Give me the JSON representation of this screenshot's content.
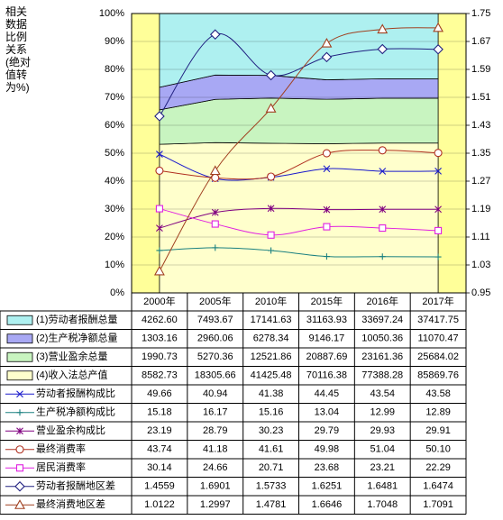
{
  "chart_data": {
    "type": "combo",
    "y_title": "相关数据比例关系(绝对值转为%)",
    "categories": [
      "2000年",
      "2005年",
      "2010年",
      "2015年",
      "2016年",
      "2017年"
    ],
    "ylim": [
      0,
      100
    ],
    "yticks": [
      {
        "value": 0,
        "label": "0%"
      },
      {
        "value": 10,
        "label": "10%"
      },
      {
        "value": 20,
        "label": "20%"
      },
      {
        "value": 30,
        "label": "30%"
      },
      {
        "value": 40,
        "label": "40%"
      },
      {
        "value": 50,
        "label": "50%"
      },
      {
        "value": 60,
        "label": "60%"
      },
      {
        "value": 70,
        "label": "70%"
      },
      {
        "value": 80,
        "label": "80%"
      },
      {
        "value": 90,
        "label": "90%"
      },
      {
        "value": 100,
        "label": "100%"
      }
    ],
    "y2lim": [
      0.95,
      1.75
    ],
    "y2ticks": [
      0.95,
      1.03,
      1.11,
      1.19,
      1.27,
      1.35,
      1.43,
      1.51,
      1.59,
      1.67,
      1.75
    ],
    "area_stacking": "percent",
    "grid": true,
    "background": "#ffff99",
    "data_table": true,
    "series": [
      {
        "name": "(1)劳动者报酬总量",
        "type": "area",
        "color": "#aef0f0",
        "values": [
          4262.6,
          7493.67,
          17141.63,
          31163.93,
          33697.24,
          37417.75
        ],
        "value_labels": [
          "4262.60",
          "7493.67",
          "17141.63",
          "31163.93",
          "33697.24",
          "37417.75"
        ]
      },
      {
        "name": "(2)生产税净额总量",
        "type": "area",
        "color": "#a8a8f4",
        "values": [
          1303.16,
          2960.06,
          6278.34,
          9146.17,
          10050.36,
          11070.47
        ],
        "value_labels": [
          "1303.16",
          "2960.06",
          "6278.34",
          "9146.17",
          "10050.36",
          "11070.47"
        ]
      },
      {
        "name": "(3)营业盈余总量",
        "type": "area",
        "color": "#c8f4c0",
        "values": [
          1990.73,
          5270.36,
          12521.86,
          20887.69,
          23161.36,
          25684.02
        ],
        "value_labels": [
          "1990.73",
          "5270.36",
          "12521.86",
          "20887.69",
          "23161.36",
          "25684.02"
        ]
      },
      {
        "name": "(4)收入法总产值",
        "type": "area",
        "color": "#ffffcc",
        "values": [
          8582.73,
          18305.66,
          41425.48,
          70116.38,
          77388.28,
          85869.76
        ],
        "value_labels": [
          "8582.73",
          "18305.66",
          "41425.48",
          "70116.38",
          "77388.28",
          "85869.76"
        ]
      },
      {
        "name": "劳动者报酬构成比",
        "type": "line",
        "marker": "x",
        "color": "#1a1acc",
        "values": [
          49.66,
          40.94,
          41.38,
          44.45,
          43.54,
          43.58
        ],
        "value_labels": [
          "49.66",
          "40.94",
          "41.38",
          "44.45",
          "43.54",
          "43.58"
        ]
      },
      {
        "name": "生产税净额构成比",
        "type": "line",
        "marker": "+",
        "color": "#1a8080",
        "values": [
          15.18,
          16.17,
          15.16,
          13.04,
          12.99,
          12.89
        ],
        "value_labels": [
          "15.18",
          "16.17",
          "15.16",
          "13.04",
          "12.99",
          "12.89"
        ]
      },
      {
        "name": "营业盈余构成比",
        "type": "line",
        "marker": "*",
        "color": "#800080",
        "values": [
          23.19,
          28.79,
          30.23,
          29.79,
          29.93,
          29.91
        ],
        "value_labels": [
          "23.19",
          "28.79",
          "30.23",
          "29.79",
          "29.93",
          "29.91"
        ]
      },
      {
        "name": "最终消费率",
        "type": "line",
        "marker": "circle",
        "color": "#b03020",
        "values": [
          43.74,
          41.18,
          41.61,
          49.98,
          51.04,
          50.1
        ],
        "value_labels": [
          "43.74",
          "41.18",
          "41.61",
          "49.98",
          "51.04",
          "50.10"
        ]
      },
      {
        "name": "居民消费率",
        "type": "line",
        "marker": "square",
        "color": "#e020e0",
        "values": [
          30.14,
          24.66,
          20.71,
          23.68,
          23.21,
          22.29
        ],
        "value_labels": [
          "30.14",
          "24.66",
          "20.71",
          "23.68",
          "23.21",
          "22.29"
        ]
      },
      {
        "name": "劳动者报酬地区差",
        "type": "line",
        "marker": "diamond",
        "axis": "y2",
        "color": "#202080",
        "values": [
          1.4559,
          1.6901,
          1.5733,
          1.6251,
          1.6481,
          1.6474
        ],
        "value_labels": [
          "1.4559",
          "1.6901",
          "1.5733",
          "1.6251",
          "1.6481",
          "1.6474"
        ]
      },
      {
        "name": "最终消费地区差",
        "type": "line",
        "marker": "triangle",
        "axis": "y2",
        "color": "#a04020",
        "values": [
          1.0122,
          1.2997,
          1.4781,
          1.6646,
          1.7048,
          1.7091
        ],
        "value_labels": [
          "1.0122",
          "1.2997",
          "1.4781",
          "1.6646",
          "1.7048",
          "1.7091"
        ]
      }
    ]
  }
}
